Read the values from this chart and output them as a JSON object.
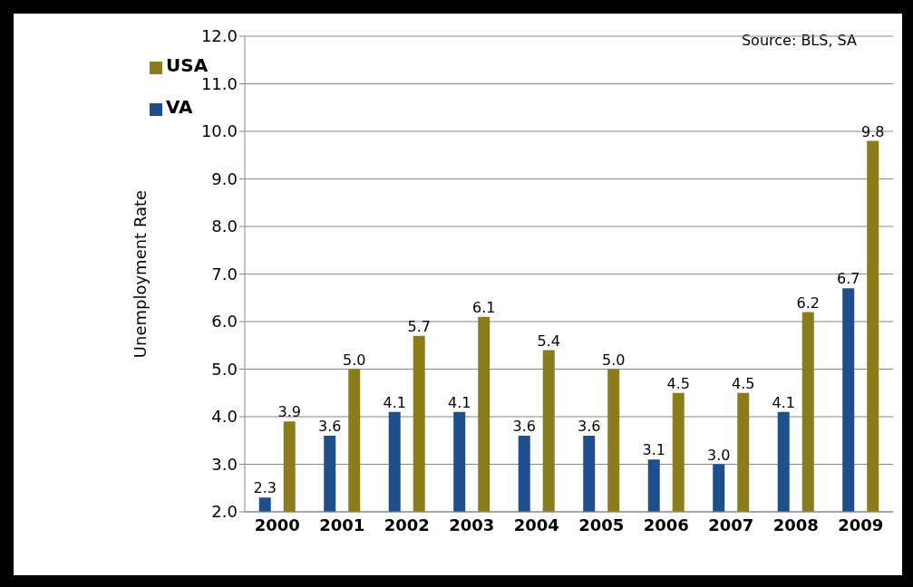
{
  "chart_data": {
    "type": "bar",
    "ylabel": "Unemployment Rate",
    "categories": [
      "2000",
      "2001",
      "2002",
      "2003",
      "2004",
      "2005",
      "2006",
      "2007",
      "2008",
      "2009"
    ],
    "series": [
      {
        "name": "VA",
        "color": "#1f4e8c",
        "values": [
          2.3,
          3.6,
          4.1,
          4.1,
          3.6,
          3.6,
          3.1,
          3.0,
          4.1,
          6.7
        ],
        "value_labels": [
          "2.3",
          "3.6",
          "4.1",
          "4.1",
          "3.6",
          "3.6",
          "3.1",
          "3.0",
          "4.1",
          "6.7"
        ]
      },
      {
        "name": "USA",
        "color": "#8c7d1c",
        "values": [
          3.9,
          5.0,
          5.7,
          6.1,
          5.4,
          5.0,
          4.5,
          4.5,
          6.2,
          9.8
        ],
        "value_labels": [
          "3.9",
          "5.0",
          "5.7",
          "6.1",
          "5.4",
          "5.0",
          "4.5",
          "4.5",
          "6.2",
          "9.8"
        ]
      }
    ],
    "ylim": [
      2,
      12
    ],
    "yticks": [
      {
        "value": 2,
        "label": "2.0"
      },
      {
        "value": 3,
        "label": "3.0"
      },
      {
        "value": 4,
        "label": "4.0"
      },
      {
        "value": 5,
        "label": "5.0"
      },
      {
        "value": 6,
        "label": "6.0"
      },
      {
        "value": 7,
        "label": "7.0"
      },
      {
        "value": 8,
        "label": "8.0"
      },
      {
        "value": 9,
        "label": "9.0"
      },
      {
        "value": 10,
        "label": "10.0"
      },
      {
        "value": 11,
        "label": "11.0"
      },
      {
        "value": 12,
        "label": "12.0"
      }
    ],
    "grid": "y",
    "legend": "top left",
    "annotations": [
      "Source: BLS, SA"
    ]
  }
}
